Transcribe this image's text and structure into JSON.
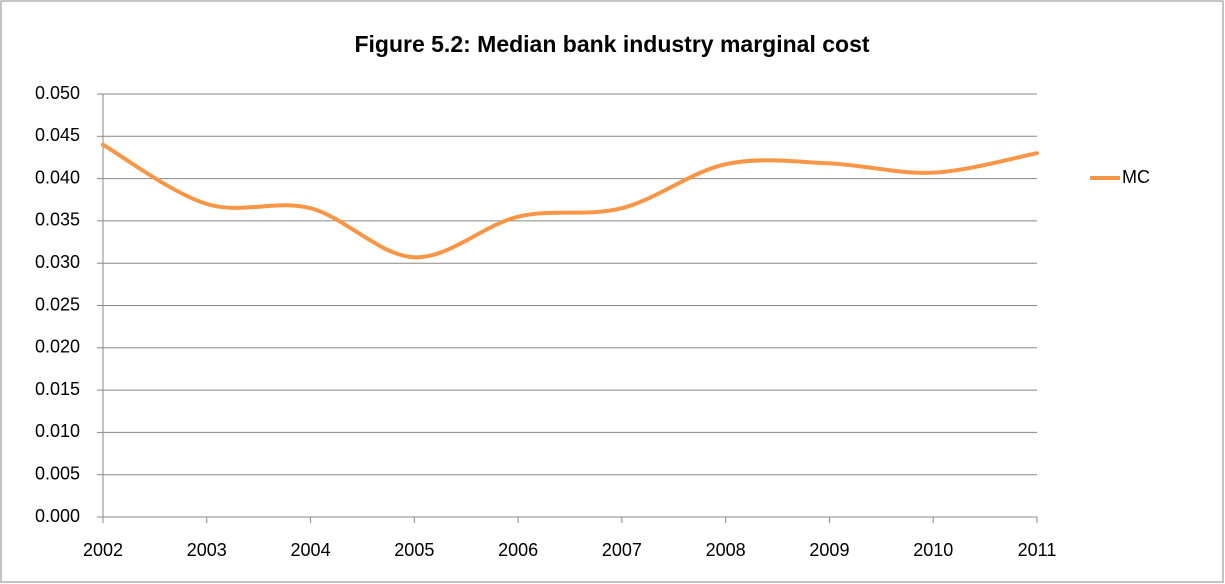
{
  "chart_data": {
    "type": "line",
    "title": "Figure 5.2: Median bank industry marginal cost",
    "categories": [
      "2002",
      "2003",
      "2004",
      "2005",
      "2006",
      "2007",
      "2008",
      "2009",
      "2010",
      "2011"
    ],
    "series": [
      {
        "name": "MC",
        "color": "#f79646",
        "values": [
          0.044,
          0.037,
          0.0365,
          0.0307,
          0.0355,
          0.0365,
          0.0417,
          0.0418,
          0.0407,
          0.043
        ]
      }
    ],
    "ylim": [
      0,
      0.05
    ],
    "yticks": [
      {
        "value": 0,
        "label": "0.000"
      },
      {
        "value": 0.005,
        "label": "0.005"
      },
      {
        "value": 0.01,
        "label": "0.010"
      },
      {
        "value": 0.015,
        "label": "0.015"
      },
      {
        "value": 0.02,
        "label": "0.020"
      },
      {
        "value": 0.025,
        "label": "0.025"
      },
      {
        "value": 0.03,
        "label": "0.030"
      },
      {
        "value": 0.035,
        "label": "0.035"
      },
      {
        "value": 0.04,
        "label": "0.040"
      },
      {
        "value": 0.045,
        "label": "0.045"
      },
      {
        "value": 0.05,
        "label": "0.050"
      }
    ],
    "grid": true,
    "legend": "right",
    "smooth": true
  }
}
